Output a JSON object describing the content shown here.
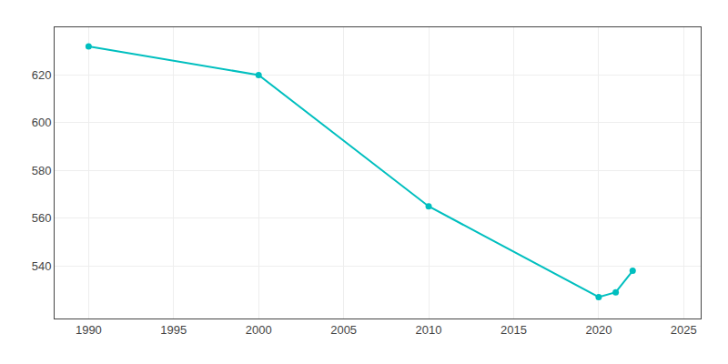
{
  "chart_data": {
    "type": "line",
    "x": [
      1990,
      2000,
      2010,
      2020,
      2021,
      2022
    ],
    "values": [
      632,
      620,
      565,
      527,
      529,
      538
    ],
    "color": "#00BFBF",
    "marker": "circle",
    "xlim": [
      1988,
      2026
    ],
    "ylim": [
      518,
      640
    ],
    "xticks": [
      1990,
      1995,
      2000,
      2005,
      2010,
      2015,
      2020,
      2025
    ],
    "yticks": [
      540,
      560,
      580,
      600,
      620
    ],
    "grid": true
  }
}
